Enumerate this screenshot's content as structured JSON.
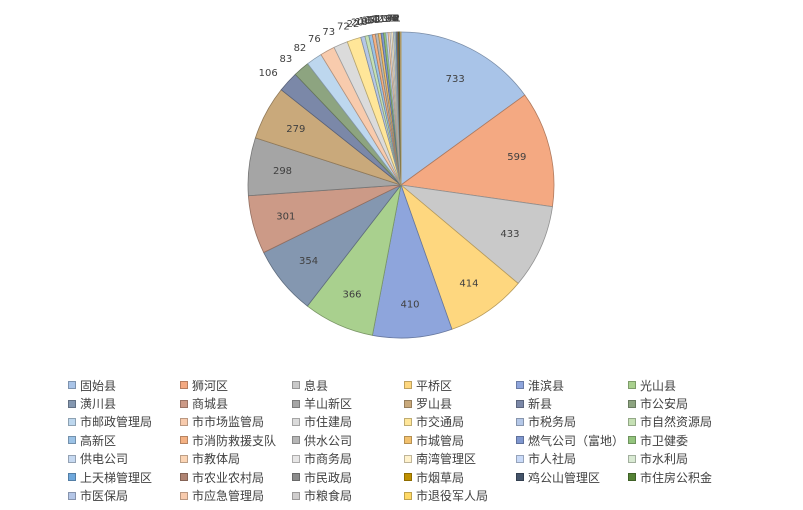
{
  "chart_data": {
    "type": "pie",
    "title": "",
    "start_angle_deg": 0,
    "direction": "clockwise",
    "legend_position": "bottom",
    "slices": [
      {
        "label": "固始县",
        "value": 733,
        "color": "#a9c4e8"
      },
      {
        "label": "狮河区",
        "value": 599,
        "color": "#f4a982"
      },
      {
        "label": "息县",
        "value": 433,
        "color": "#c9c9c9"
      },
      {
        "label": "平桥区",
        "value": 414,
        "color": "#fed77f"
      },
      {
        "label": "淮滨县",
        "value": 410,
        "color": "#8ea5dc"
      },
      {
        "label": "光山县",
        "value": 366,
        "color": "#a9d08e"
      },
      {
        "label": "潢川县",
        "value": 354,
        "color": "#8497b0"
      },
      {
        "label": "商城县",
        "value": 301,
        "color": "#cc9a87"
      },
      {
        "label": "羊山新区",
        "value": 298,
        "color": "#a5a5a5"
      },
      {
        "label": "罗山县",
        "value": 279,
        "color": "#c9a97b"
      },
      {
        "label": "新县",
        "value": 106,
        "color": "#7b88a8"
      },
      {
        "label": "市公安局",
        "value": 83,
        "color": "#8da480"
      },
      {
        "label": "市邮政管理局",
        "value": 82,
        "color": "#bdd7ee"
      },
      {
        "label": "市市场监管局",
        "value": 76,
        "color": "#f8cbad"
      },
      {
        "label": "市住建局",
        "value": 73,
        "color": "#dbdbdb"
      },
      {
        "label": "市交通局",
        "value": 72,
        "color": "#ffe699"
      },
      {
        "label": "市税务局",
        "value": 22,
        "color": "#b4c7e7"
      },
      {
        "label": "市自然资源局",
        "value": 20,
        "color": "#c5e0b4"
      },
      {
        "label": "高新区",
        "value": 18,
        "color": "#9bc2e6"
      },
      {
        "label": "市消防救援支队",
        "value": 16,
        "color": "#f4b183"
      },
      {
        "label": "供水公司",
        "value": 15,
        "color": "#b7b7b7"
      },
      {
        "label": "市城管局",
        "value": 14,
        "color": "#f2c16e"
      },
      {
        "label": "燃气公司（富地）",
        "value": 13,
        "color": "#7f97cf"
      },
      {
        "label": "市卫健委",
        "value": 12,
        "color": "#93c47d"
      },
      {
        "label": "供电公司",
        "value": 11,
        "color": "#c6d9f1"
      },
      {
        "label": "市教体局",
        "value": 10,
        "color": "#fbd4b4"
      },
      {
        "label": "市商务局",
        "value": 9,
        "color": "#e7e6e6"
      },
      {
        "label": "南湾管理区",
        "value": 8,
        "color": "#fff2cc"
      },
      {
        "label": "市人社局",
        "value": 7,
        "color": "#c9daf8"
      },
      {
        "label": "市水利局",
        "value": 6,
        "color": "#d9ead3"
      },
      {
        "label": "上天梯管理区",
        "value": 5,
        "color": "#6fa8dc"
      },
      {
        "label": "市农业农村局",
        "value": 4,
        "color": "#b08473"
      },
      {
        "label": "市民政局",
        "value": 4,
        "color": "#8c8c8c"
      },
      {
        "label": "市烟草局",
        "value": 3,
        "color": "#bf9000"
      },
      {
        "label": "鸡公山管理区",
        "value": 3,
        "color": "#44546a"
      },
      {
        "label": "市住房公积金",
        "value": 2,
        "color": "#548235"
      },
      {
        "label": "市医保局",
        "value": 2,
        "color": "#b4c6e7"
      },
      {
        "label": "市应急管理局",
        "value": 1,
        "color": "#f8cbad"
      },
      {
        "label": "市粮食局",
        "value": 1,
        "color": "#d0cece"
      },
      {
        "label": "市退役军人局",
        "value": 1,
        "color": "#ffd966"
      }
    ]
  }
}
